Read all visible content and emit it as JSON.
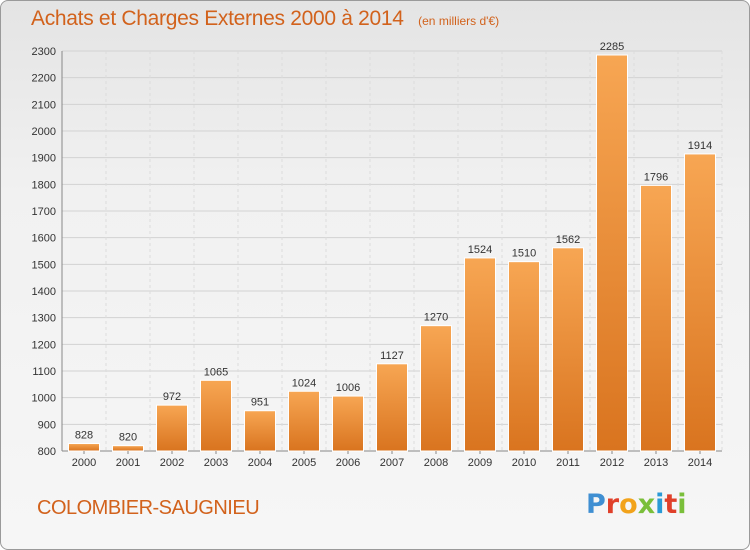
{
  "header": {
    "title": "Achats et Charges Externes 2000 à 2014",
    "unit": "(en milliers d'€)"
  },
  "footer": {
    "commune": "COLOMBIER-SAUGNIEU",
    "brand_letters": [
      "P",
      "r",
      "o",
      "x",
      "i",
      "t",
      "i"
    ],
    "brand_colors": [
      "#3f8fd2",
      "#e0402a",
      "#f2a31b",
      "#7abf3a",
      "#2a9ad6",
      "#e0402a",
      "#7abf3a"
    ]
  },
  "chart_data": {
    "type": "bar",
    "categories": [
      "2000",
      "2001",
      "2002",
      "2003",
      "2004",
      "2005",
      "2006",
      "2007",
      "2008",
      "2009",
      "2010",
      "2011",
      "2012",
      "2013",
      "2014"
    ],
    "values": [
      828,
      820,
      972,
      1065,
      951,
      1024,
      1006,
      1127,
      1270,
      1524,
      1510,
      1562,
      2285,
      1796,
      1914
    ],
    "yticks": [
      800,
      900,
      1000,
      1100,
      1200,
      1300,
      1400,
      1500,
      1600,
      1700,
      1800,
      1900,
      2000,
      2100,
      2200,
      2300
    ],
    "ylim": [
      800,
      2300
    ],
    "grid": true,
    "bar_color": "#f29a45"
  }
}
